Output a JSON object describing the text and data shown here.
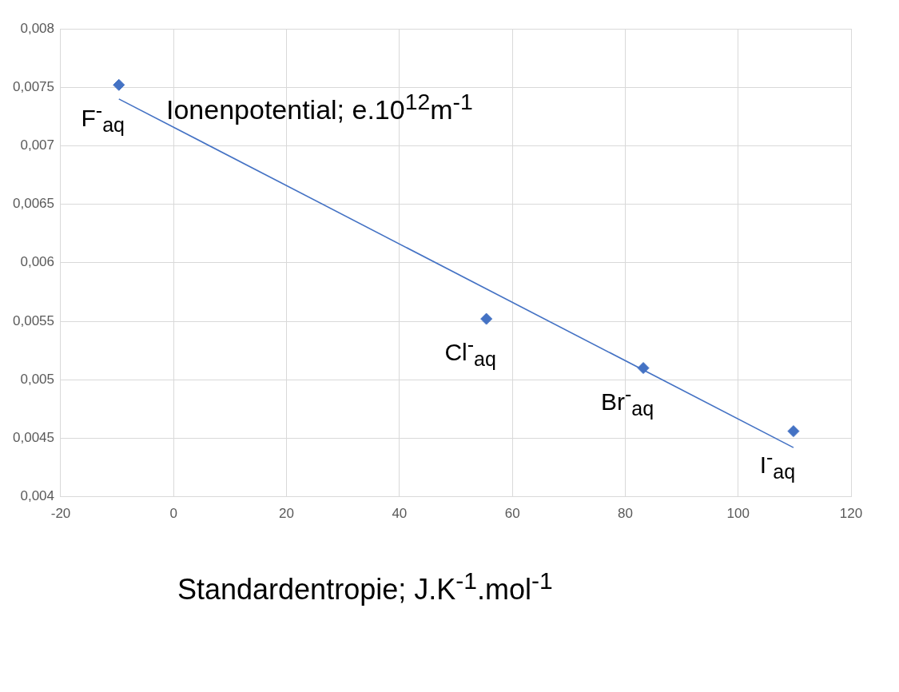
{
  "chart_data": {
    "type": "scatter",
    "xlabel": "Standardentropie; J.K$^{-1}$.mol$^{-1}$",
    "ylabel": "Ionenpotential; e.10$^{12}$m$^{-1}$",
    "xlim": [
      -20,
      120
    ],
    "xticks": [
      -20,
      0,
      20,
      40,
      60,
      80,
      100,
      120
    ],
    "ylim": [
      0.004,
      0.008
    ],
    "yticks": [
      {
        "value": 0.004,
        "label": "0,004"
      },
      {
        "value": 0.0045,
        "label": "0,0045"
      },
      {
        "value": 0.005,
        "label": "0,005"
      },
      {
        "value": 0.0055,
        "label": "0,0055"
      },
      {
        "value": 0.006,
        "label": "0,006"
      },
      {
        "value": 0.0065,
        "label": "0,0065"
      },
      {
        "value": 0.007,
        "label": "0,007"
      },
      {
        "value": 0.0075,
        "label": "0,0075"
      },
      {
        "value": 0.008,
        "label": "0,008"
      }
    ],
    "grid": true,
    "marker": "diamond",
    "series": [
      {
        "color": "#4472c4",
        "x": [
          -9.7,
          55.4,
          83.2,
          109.8
        ],
        "values": [
          0.00752,
          0.00552,
          0.0051,
          0.00456
        ]
      },
      {
        "type": "line",
        "color": "#4472c4",
        "marker": "none",
        "x": [
          -9.7,
          109.8
        ],
        "values": [
          0.0074,
          0.00442
        ]
      }
    ],
    "annotations": [
      {
        "text": "F$^{-}$$_{aq}$",
        "x": -9.7,
        "y": 0.00752
      },
      {
        "text": "Cl$^{-}$$_{aq}$",
        "x": 55.4,
        "y": 0.00552
      },
      {
        "text": "Br$^{-}$$_{aq}$",
        "x": 83.2,
        "y": 0.0051
      },
      {
        "text": "I$^{-}$$_{aq}$",
        "x": 109.8,
        "y": 0.00456
      }
    ]
  }
}
